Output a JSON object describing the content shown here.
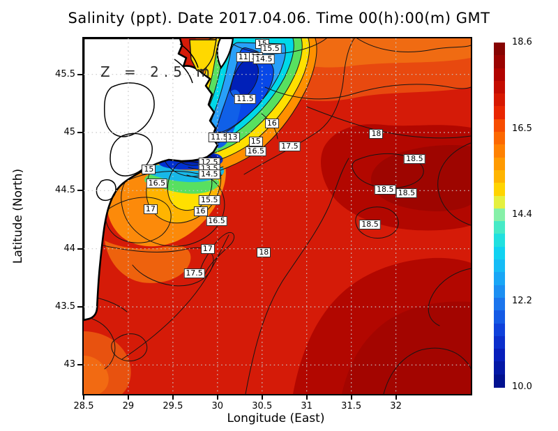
{
  "title": "Salinity (ppt). Date 2017.04.06. Time 00(h):00(m) GMT",
  "annotation": "Z = 2.5 m",
  "axes": {
    "x": {
      "label": "Longitude (East)",
      "ticks": [
        "28.5",
        "29",
        "29.5",
        "30",
        "30.5",
        "31",
        "31.5",
        "32"
      ]
    },
    "y": {
      "label": "Latitude (North)",
      "ticks": [
        "45.5",
        "45",
        "44.5",
        "44",
        "43.5",
        "43"
      ]
    }
  },
  "colorbar": {
    "labels": [
      "18.6",
      "16.5",
      "14.4",
      "12.2",
      "10.0"
    ],
    "min": 10.0,
    "max": 18.6,
    "colormap": "jet"
  },
  "chart_data": {
    "type": "heatmap",
    "subtype": "filled-contour-map",
    "title": "Salinity (ppt). Date 2017.04.06. Time 00(h):00(m) GMT",
    "xlabel": "Longitude (East)",
    "ylabel": "Latitude (North)",
    "units": "ppt",
    "depth_annotation": "Z = 2.5 m",
    "xlim": [
      28.5,
      32.84
    ],
    "ylim": [
      42.75,
      45.81
    ],
    "x_ticks": [
      28.5,
      29,
      29.5,
      30,
      30.5,
      31,
      31.5,
      32
    ],
    "y_ticks": [
      45.5,
      45,
      44.5,
      44,
      43.5,
      43
    ],
    "grid": "dotted",
    "legend_position": "right-colorbar",
    "colorbar": {
      "min": 10.0,
      "max": 18.6,
      "tick_values": [
        18.6,
        16.5,
        14.4,
        12.2,
        10.0
      ],
      "colormap": "jet"
    },
    "contour_interval": 0.5,
    "contour_labels": [
      {
        "v": 15,
        "lon": 30.5,
        "lat": 45.76
      },
      {
        "v": 15.5,
        "lon": 30.6,
        "lat": 45.72
      },
      {
        "v": 11.5,
        "lon": 30.33,
        "lat": 45.65
      },
      {
        "v": 13,
        "lon": 30.43,
        "lat": 45.65
      },
      {
        "v": 14.5,
        "lon": 30.52,
        "lat": 45.63
      },
      {
        "v": 11.5,
        "lon": 30.31,
        "lat": 45.29
      },
      {
        "v": 16,
        "lon": 30.61,
        "lat": 45.08
      },
      {
        "v": 11.5,
        "lon": 30.02,
        "lat": 44.96
      },
      {
        "v": 13,
        "lon": 30.17,
        "lat": 44.96
      },
      {
        "v": 15,
        "lon": 30.43,
        "lat": 44.92
      },
      {
        "v": 16.5,
        "lon": 30.43,
        "lat": 44.84
      },
      {
        "v": 17.5,
        "lon": 30.81,
        "lat": 44.88
      },
      {
        "v": 18,
        "lon": 31.78,
        "lat": 44.99
      },
      {
        "v": 18.5,
        "lon": 32.21,
        "lat": 44.77
      },
      {
        "v": 18.5,
        "lon": 31.88,
        "lat": 44.51
      },
      {
        "v": 18.5,
        "lon": 32.12,
        "lat": 44.48
      },
      {
        "v": 18.5,
        "lon": 31.71,
        "lat": 44.21
      },
      {
        "v": 15,
        "lon": 29.23,
        "lat": 44.68
      },
      {
        "v": 16.5,
        "lon": 29.32,
        "lat": 44.56
      },
      {
        "v": 12.5,
        "lon": 29.91,
        "lat": 44.74
      },
      {
        "v": 13.5,
        "lon": 29.91,
        "lat": 44.69
      },
      {
        "v": 14.5,
        "lon": 29.91,
        "lat": 44.64
      },
      {
        "v": 15.5,
        "lon": 29.91,
        "lat": 44.42
      },
      {
        "v": 16,
        "lon": 29.81,
        "lat": 44.32
      },
      {
        "v": 16.5,
        "lon": 29.99,
        "lat": 44.24
      },
      {
        "v": 17,
        "lon": 29.25,
        "lat": 44.34
      },
      {
        "v": 17,
        "lon": 29.89,
        "lat": 44.0
      },
      {
        "v": 18,
        "lon": 30.52,
        "lat": 43.97
      },
      {
        "v": 17.5,
        "lon": 29.74,
        "lat": 43.79
      }
    ],
    "features": [
      "white land mass (Danube delta coast) in upper-left with black coastline and lagoon outlines",
      "low-salinity plume (10-13 ppt, blue) offshore of delta near 30.3E 45.3-45.7N hugging the coast",
      "concentric contour rings 11.5-16.5 ppt around plume",
      "orange-yellow coastal band 15-17 ppt along southwest coast",
      "high salinity 18-18.6 ppt dark red water in east and southeast"
    ]
  }
}
